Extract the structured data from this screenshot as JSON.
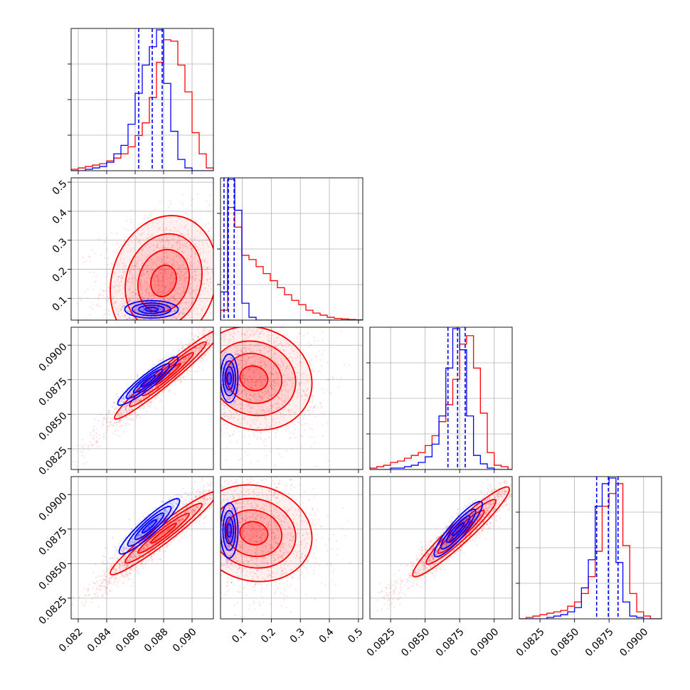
{
  "chart_data": {
    "type": "corner",
    "grid": true,
    "colors": {
      "series_a": "#0000ff",
      "series_b": "#ff0000"
    },
    "params": [
      {
        "ticks": [
          0.082,
          0.084,
          0.086,
          0.088,
          0.09
        ],
        "tick_labels": [
          "0.082",
          "0.084",
          "0.086",
          "0.088",
          "0.090"
        ],
        "range": [
          0.0815,
          0.0915
        ]
      },
      {
        "ticks": [
          0.1,
          0.2,
          0.3,
          0.4,
          0.5
        ],
        "tick_labels": [
          "0.1",
          "0.2",
          "0.3",
          "0.4",
          "0.5"
        ],
        "range": [
          0.025,
          0.515
        ]
      },
      {
        "ticks": [
          0.0825,
          0.085,
          0.0875,
          0.09
        ],
        "tick_labels": [
          "0.0825",
          "0.0850",
          "0.0875",
          "0.0900"
        ],
        "range": [
          0.081,
          0.0913
        ]
      },
      {
        "ticks": [
          0.0825,
          0.085,
          0.0875,
          0.09
        ],
        "tick_labels": [
          "0.0825",
          "0.0850",
          "0.0875",
          "0.0900"
        ],
        "range": [
          0.081,
          0.0913
        ]
      }
    ],
    "diagonal": [
      {
        "param": 0,
        "series": [
          {
            "name": "",
            "color": "#0000ff",
            "bin_edges": [
              0.0815,
              0.082,
              0.0825,
              0.083,
              0.0835,
              0.084,
              0.0845,
              0.085,
              0.0855,
              0.086,
              0.0865,
              0.087,
              0.0875,
              0.088,
              0.0885,
              0.089,
              0.0895,
              0.09,
              0.0905,
              0.091,
              0.0915
            ],
            "values": [
              0,
              0,
              0.01,
              0.02,
              0.03,
              0.06,
              0.12,
              0.18,
              0.33,
              0.55,
              0.75,
              0.88,
              1.0,
              0.62,
              0.28,
              0.08,
              0.02,
              0,
              0,
              0
            ],
            "quantiles": [
              0.08625,
              0.0872,
              0.0879
            ]
          },
          {
            "name": "",
            "color": "#ff0000",
            "bin_edges": [
              0.0815,
              0.082,
              0.0825,
              0.083,
              0.0835,
              0.084,
              0.0845,
              0.085,
              0.0855,
              0.086,
              0.0865,
              0.087,
              0.0875,
              0.088,
              0.0885,
              0.089,
              0.0895,
              0.09,
              0.0905,
              0.091,
              0.0915
            ],
            "values": [
              0.01,
              0.02,
              0.03,
              0.04,
              0.05,
              0.07,
              0.09,
              0.12,
              0.17,
              0.25,
              0.34,
              0.52,
              0.77,
              0.93,
              0.92,
              0.75,
              0.56,
              0.27,
              0.12,
              0.02
            ],
            "quantiles": []
          }
        ]
      },
      {
        "param": 1,
        "series": [
          {
            "name": "",
            "color": "#0000ff",
            "bin_edges": [
              0.025,
              0.0495,
              0.074,
              0.0985,
              0.123,
              0.1475,
              0.172,
              0.1965,
              0.221,
              0.2455,
              0.27,
              0.2945,
              0.319,
              0.3435,
              0.368,
              0.3925,
              0.417,
              0.4415,
              0.466,
              0.4905,
              0.515
            ],
            "values": [
              0.2,
              1.0,
              0.78,
              0.12,
              0.02,
              0,
              0,
              0,
              0,
              0,
              0,
              0,
              0,
              0,
              0,
              0,
              0,
              0,
              0,
              0
            ],
            "quantiles": [
              0.037,
              0.052,
              0.072
            ]
          },
          {
            "name": "",
            "color": "#ff0000",
            "bin_edges": [
              0.025,
              0.0495,
              0.074,
              0.0985,
              0.123,
              0.1475,
              0.172,
              0.1965,
              0.221,
              0.2455,
              0.27,
              0.2945,
              0.319,
              0.3435,
              0.368,
              0.3925,
              0.417,
              0.4415,
              0.466,
              0.4905,
              0.515
            ],
            "values": [
              0.07,
              0.8,
              0.66,
              0.46,
              0.43,
              0.38,
              0.33,
              0.28,
              0.23,
              0.18,
              0.14,
              0.11,
              0.07,
              0.05,
              0.035,
              0.02,
              0.012,
              0.008,
              0.004,
              0.002
            ],
            "quantiles": []
          }
        ]
      },
      {
        "param": 2,
        "series": [
          {
            "name": "",
            "color": "#0000ff",
            "bin_edges": [
              0.081,
              0.0815,
              0.082,
              0.0825,
              0.083,
              0.0835,
              0.084,
              0.0845,
              0.085,
              0.0855,
              0.086,
              0.0865,
              0.087,
              0.0875,
              0.088,
              0.0885,
              0.089,
              0.0895,
              0.09,
              0.0905,
              0.091,
              0.0913
            ],
            "values": [
              0,
              0,
              0,
              0.01,
              0.01,
              0.02,
              0.03,
              0.05,
              0.09,
              0.18,
              0.38,
              0.72,
              1.0,
              0.85,
              0.38,
              0.1,
              0.04,
              0.01,
              0,
              0,
              0
            ],
            "quantiles": [
              0.08665,
              0.08735,
              0.0879
            ]
          },
          {
            "name": "",
            "color": "#ff0000",
            "bin_edges": [
              0.081,
              0.0815,
              0.082,
              0.0825,
              0.083,
              0.0835,
              0.084,
              0.0845,
              0.085,
              0.0855,
              0.086,
              0.0865,
              0.087,
              0.0875,
              0.088,
              0.0885,
              0.089,
              0.0895,
              0.09,
              0.0905,
              0.091,
              0.0913
            ],
            "values": [
              0.01,
              0.02,
              0.03,
              0.05,
              0.06,
              0.08,
              0.1,
              0.12,
              0.17,
              0.24,
              0.34,
              0.46,
              0.64,
              0.89,
              0.95,
              0.72,
              0.4,
              0.12,
              0.03,
              0.02,
              0
            ],
            "quantiles": []
          }
        ]
      },
      {
        "param": 3,
        "series": [
          {
            "name": "",
            "color": "#0000ff",
            "bin_edges": [
              0.081,
              0.0815,
              0.082,
              0.0825,
              0.083,
              0.0835,
              0.084,
              0.0845,
              0.085,
              0.0855,
              0.086,
              0.0865,
              0.087,
              0.0875,
              0.088,
              0.0885,
              0.089,
              0.0895,
              0.09,
              0.0905,
              0.091,
              0.0913
            ],
            "values": [
              0,
              0,
              0,
              0,
              0.01,
              0.02,
              0.03,
              0.05,
              0.08,
              0.22,
              0.42,
              0.8,
              0.96,
              1.0,
              0.4,
              0.12,
              0.02,
              0.01,
              0,
              0,
              0
            ],
            "quantiles": [
              0.0866,
              0.08745,
              0.08815
            ]
          },
          {
            "name": "",
            "color": "#ff0000",
            "bin_edges": [
              0.081,
              0.0815,
              0.082,
              0.0825,
              0.083,
              0.0835,
              0.084,
              0.0845,
              0.085,
              0.0855,
              0.086,
              0.0865,
              0.087,
              0.0875,
              0.088,
              0.0885,
              0.089,
              0.0895,
              0.09,
              0.0905,
              0.091,
              0.0913
            ],
            "values": [
              0,
              0.01,
              0.02,
              0.03,
              0.04,
              0.05,
              0.06,
              0.09,
              0.12,
              0.18,
              0.3,
              0.48,
              0.8,
              0.89,
              0.96,
              0.52,
              0.18,
              0.05,
              0.02,
              0,
              0
            ],
            "quantiles": []
          }
        ]
      }
    ],
    "offdiagonal": [
      {
        "row": 1,
        "col": 0,
        "series": [
          {
            "color": "#0000ff",
            "center": [
              0.08715,
              0.062
            ],
            "sd": [
              0.00075,
              0.012
            ],
            "rho": 0.0,
            "n_points": 500,
            "cloud_sd": [
              0.001,
              0.02
            ]
          },
          {
            "color": "#ff0000",
            "center": [
              0.088,
              0.16
            ],
            "sd": [
              0.0015,
              0.09
            ],
            "rho": 0.15,
            "n_points": 1600,
            "cloud_sd": [
              0.0022,
              0.11
            ]
          }
        ]
      },
      {
        "row": 2,
        "col": 0,
        "series": [
          {
            "color": "#0000ff",
            "center": [
              0.0869,
              0.0874
            ],
            "sd": [
              0.00085,
              0.0007
            ],
            "rho": 0.93,
            "n_points": 500,
            "cloud_sd": [
              0.0012,
              0.001
            ]
          },
          {
            "color": "#ff0000",
            "center": [
              0.0883,
              0.0879
            ],
            "sd": [
              0.0015,
              0.0013
            ],
            "rho": 0.97,
            "n_points": 1600,
            "cloud_sd": [
              0.0024,
              0.0022
            ]
          }
        ]
      },
      {
        "row": 2,
        "col": 1,
        "series": [
          {
            "color": "#0000ff",
            "center": [
              0.055,
              0.0876
            ],
            "sd": [
              0.012,
              0.0007
            ],
            "rho": 0.0,
            "n_points": 500,
            "cloud_sd": [
              0.02,
              0.001
            ]
          },
          {
            "color": "#ff0000",
            "center": [
              0.14,
              0.0876
            ],
            "sd": [
              0.08,
              0.0015
            ],
            "rho": -0.1,
            "n_points": 1600,
            "cloud_sd": [
              0.11,
              0.0022
            ]
          }
        ]
      },
      {
        "row": 3,
        "col": 0,
        "series": [
          {
            "color": "#0000ff",
            "center": [
              0.087,
              0.0877
            ],
            "sd": [
              0.00085,
              0.0008
            ],
            "rho": 0.92,
            "n_points": 500,
            "cloud_sd": [
              0.0012,
              0.0011
            ]
          },
          {
            "color": "#ff0000",
            "center": [
              0.088,
              0.0872
            ],
            "sd": [
              0.0015,
              0.0012
            ],
            "rho": 0.96,
            "n_points": 1600,
            "cloud_sd": [
              0.0024,
              0.0021
            ]
          }
        ]
      },
      {
        "row": 3,
        "col": 1,
        "series": [
          {
            "color": "#0000ff",
            "center": [
              0.055,
              0.0874
            ],
            "sd": [
              0.012,
              0.0008
            ],
            "rho": 0.0,
            "n_points": 500,
            "cloud_sd": [
              0.02,
              0.0011
            ]
          },
          {
            "color": "#ff0000",
            "center": [
              0.14,
              0.0872
            ],
            "sd": [
              0.08,
              0.0014
            ],
            "rho": -0.1,
            "n_points": 1600,
            "cloud_sd": [
              0.11,
              0.0022
            ]
          }
        ]
      },
      {
        "row": 3,
        "col": 2,
        "series": [
          {
            "color": "#0000ff",
            "center": [
              0.0874,
              0.0875
            ],
            "sd": [
              0.0007,
              0.0008
            ],
            "rho": 0.9,
            "n_points": 500,
            "cloud_sd": [
              0.001,
              0.0011
            ]
          },
          {
            "color": "#ff0000",
            "center": [
              0.0876,
              0.0873
            ],
            "sd": [
              0.0014,
              0.0013
            ],
            "rho": 0.95,
            "n_points": 1600,
            "cloud_sd": [
              0.0023,
              0.0021
            ]
          }
        ]
      }
    ]
  }
}
